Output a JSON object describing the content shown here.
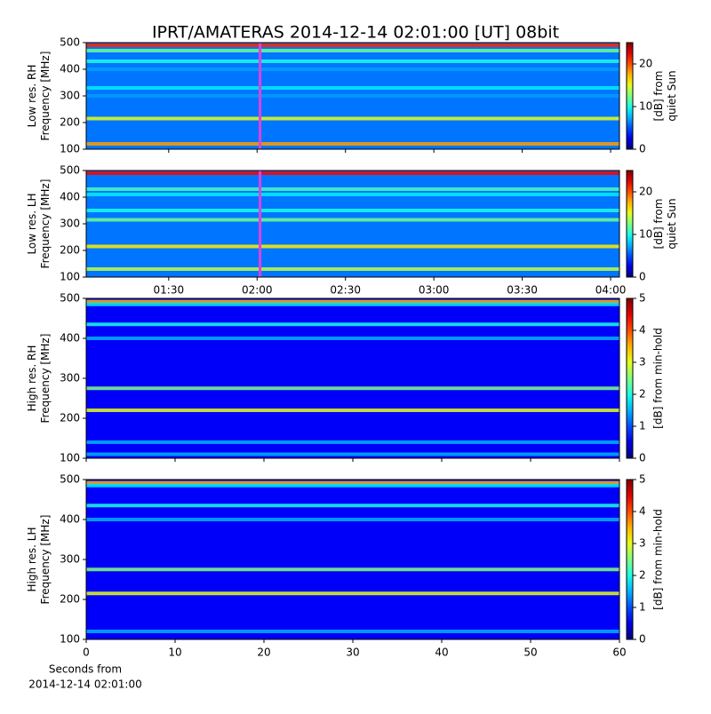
{
  "title": "IPRT/AMATERAS 2014-12-14 02:01:00 [UT]   08bit",
  "chart_data": [
    {
      "type": "spectrogram",
      "ylabel": [
        "Low res. RH",
        "Frequency [MHz]"
      ],
      "ylim": [
        100,
        500
      ],
      "yticks": [
        100,
        200,
        300,
        400,
        500
      ],
      "xlim": [
        "01:02",
        "04:03"
      ],
      "marker": "02:01",
      "marker_color": "#e040e0",
      "background_level": 6,
      "bands": {
        "frequencies": [
          490,
          470,
          430,
          400,
          330,
          300,
          215,
          120
        ],
        "levels": [
          21,
          12,
          10,
          7,
          9,
          7,
          15,
          18
        ]
      },
      "colorbar": {
        "label": [
          "[dB] from",
          "quiet Sun"
        ],
        "lim": [
          0,
          25
        ],
        "ticks": [
          0,
          10,
          20
        ]
      }
    },
    {
      "type": "spectrogram",
      "ylabel": [
        "Low res. LH",
        "Frequency [MHz]"
      ],
      "ylim": [
        100,
        500
      ],
      "yticks": [
        100,
        200,
        300,
        400,
        500
      ],
      "xlim": [
        "01:02",
        "04:03"
      ],
      "xticks": [
        "01:30",
        "02:00",
        "02:30",
        "03:00",
        "03:30",
        "04:00"
      ],
      "marker": "02:01",
      "marker_color": "#e040e0",
      "background_level": 6,
      "bands": {
        "frequencies": [
          490,
          430,
          410,
          350,
          315,
          215,
          130
        ],
        "levels": [
          22,
          11,
          9,
          10,
          12,
          16,
          14
        ]
      },
      "colorbar": {
        "label": [
          "[dB] from",
          "quiet Sun"
        ],
        "lim": [
          0,
          25
        ],
        "ticks": [
          0,
          10,
          20
        ]
      }
    },
    {
      "type": "spectrogram",
      "ylabel": [
        "High res. RH",
        "Frequency [MHz]"
      ],
      "ylim": [
        100,
        500
      ],
      "yticks": [
        100,
        200,
        300,
        400,
        500
      ],
      "xlim": [
        0,
        60
      ],
      "background_level": 0.6,
      "bands": {
        "frequencies": [
          492,
          485,
          435,
          400,
          275,
          220,
          140,
          110
        ],
        "levels": [
          3.5,
          1.8,
          2,
          1.5,
          2.5,
          3,
          1.5,
          1.5
        ]
      },
      "colorbar": {
        "label": [
          "[dB] from min-hold"
        ],
        "lim": [
          0,
          5
        ],
        "ticks": [
          0,
          1,
          2,
          3,
          4,
          5
        ]
      }
    },
    {
      "type": "spectrogram",
      "ylabel": [
        "High res. LH",
        "Frequency [MHz]"
      ],
      "ylim": [
        100,
        500
      ],
      "yticks": [
        100,
        200,
        300,
        400,
        500
      ],
      "xlim": [
        0,
        60
      ],
      "xticks": [
        0,
        10,
        20,
        30,
        40,
        50,
        60
      ],
      "xlabel": [
        "Seconds from",
        "2014-12-14 02:01:00"
      ],
      "background_level": 0.6,
      "bands": {
        "frequencies": [
          492,
          485,
          435,
          400,
          275,
          215,
          120
        ],
        "levels": [
          3.5,
          1.8,
          2,
          1.5,
          2.5,
          3,
          1.5
        ]
      },
      "colorbar": {
        "label": [
          "[dB] from min-hold"
        ],
        "lim": [
          0,
          5
        ],
        "ticks": [
          0,
          1,
          2,
          3,
          4,
          5
        ]
      }
    }
  ]
}
